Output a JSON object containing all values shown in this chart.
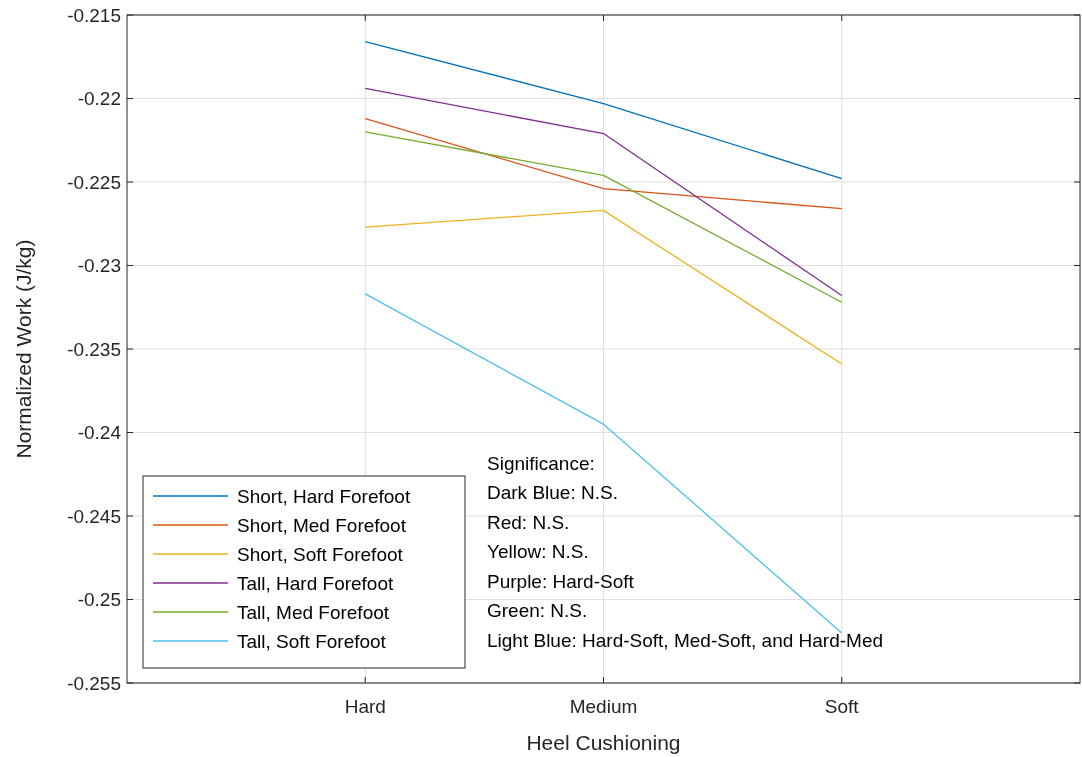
{
  "chart_data": {
    "type": "line",
    "xlabel": "Heel Cushioning",
    "ylabel": "Normalized Work (J/kg)",
    "categories": [
      "Hard",
      "Medium",
      "Soft"
    ],
    "series": [
      {
        "name": "Short, Hard Forefoot",
        "color": "#0072bd",
        "values": [
          -0.2166,
          -0.2203,
          -0.2248
        ]
      },
      {
        "name": "Short, Med Forefoot",
        "color": "#d95319",
        "values": [
          -0.2212,
          -0.2254,
          -0.2266
        ]
      },
      {
        "name": "Short, Soft Forefoot",
        "color": "#edb120",
        "values": [
          -0.2277,
          -0.2267,
          -0.2359
        ]
      },
      {
        "name": "Tall, Hard Forefoot",
        "color": "#7e2f8e",
        "values": [
          -0.2194,
          -0.2221,
          -0.2318
        ]
      },
      {
        "name": "Tall, Med Forefoot",
        "color": "#77ac30",
        "values": [
          -0.222,
          -0.2246,
          -0.2322
        ]
      },
      {
        "name": "Tall, Soft Forefoot",
        "color": "#4dbeee",
        "values": [
          -0.2317,
          -0.2395,
          -0.252
        ]
      }
    ],
    "ylim": [
      -0.255,
      -0.215
    ],
    "yticks": [
      -0.255,
      -0.25,
      -0.245,
      -0.24,
      -0.235,
      -0.23,
      -0.225,
      -0.22,
      -0.215
    ],
    "grid": true,
    "legend": "bottom left",
    "marker": "none",
    "line_style": "solid",
    "annotations": [
      "Significance:",
      "Dark Blue: N.S.",
      "Red: N.S.",
      "Yellow: N.S.",
      "Purple: Hard-Soft",
      "Green: N.S.",
      "Light Blue: Hard-Soft, Med-Soft, and Hard-Med"
    ]
  }
}
